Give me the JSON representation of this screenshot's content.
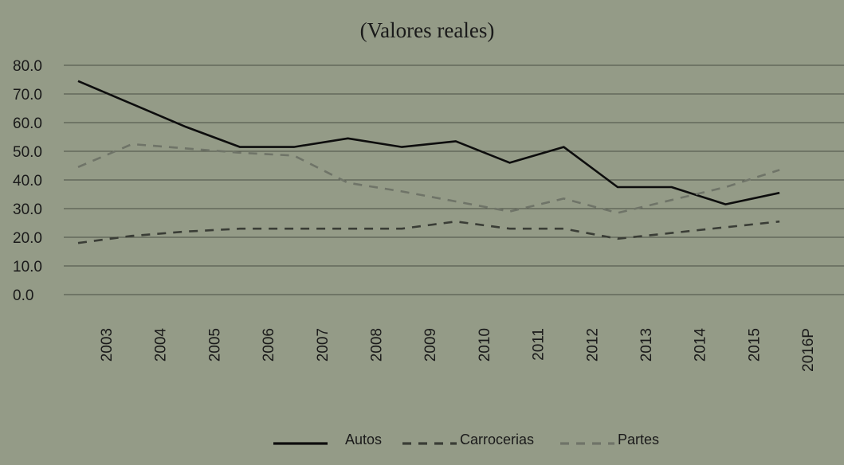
{
  "chart_data": {
    "type": "line",
    "title": "(Valores reales)",
    "xlabel": "",
    "ylabel": "",
    "categories": [
      "2003",
      "2004",
      "2005",
      "2006",
      "2007",
      "2008",
      "2009",
      "2010",
      "2011",
      "2012",
      "2013",
      "2014",
      "2015",
      "2016P"
    ],
    "ylim": [
      0,
      80
    ],
    "yticks": [
      "0.0",
      "10.0",
      "20.0",
      "30.0",
      "40.0",
      "50.0",
      "60.0",
      "70.0",
      "80.0"
    ],
    "grid": true,
    "legend_position": "bottom",
    "series": [
      {
        "name": "Autos",
        "color": "#0d0d0d",
        "dash": "solid",
        "values": [
          74.5,
          66.5,
          58.5,
          51.5,
          51.5,
          54.5,
          51.5,
          53.5,
          46.0,
          51.5,
          37.5,
          37.5,
          31.5,
          35.5
        ]
      },
      {
        "name": "Carrocerias",
        "color": "#3a3d36",
        "dash": "dashed",
        "values": [
          18.0,
          20.5,
          22.0,
          23.0,
          23.0,
          23.0,
          23.0,
          25.5,
          23.0,
          23.0,
          19.5,
          21.5,
          23.5,
          25.5
        ]
      },
      {
        "name": "Partes",
        "color": "#6f7468",
        "dash": "dashed",
        "values": [
          44.5,
          52.5,
          51.0,
          49.5,
          48.5,
          39.0,
          36.0,
          32.5,
          29.0,
          33.5,
          28.5,
          33.0,
          37.5,
          43.5
        ]
      }
    ]
  }
}
